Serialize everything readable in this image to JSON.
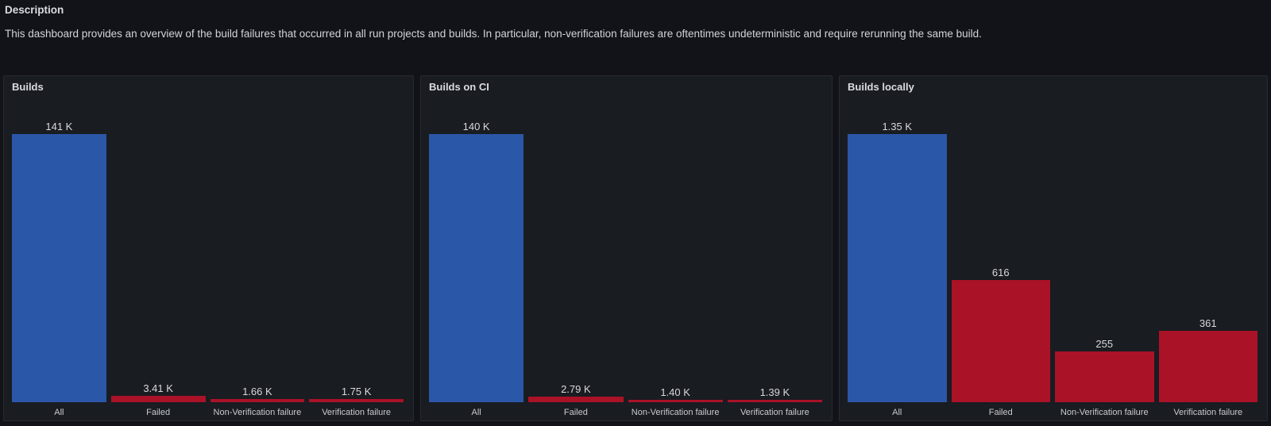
{
  "description_panel": {
    "title": "Description",
    "body": "This dashboard provides an overview of the build failures that occurred in all run projects and builds. In particular, non-verification failures are oftentimes undeterministic and require rerunning the same build."
  },
  "colors": {
    "page_background": "#111318",
    "panel_background": "#191C21",
    "panel_border": "#272A30",
    "all_bar_blue": "#2B57A8",
    "failure_bar_red": "#AA1228",
    "title_text": "#DBDCE0",
    "value_label_text": "#D8D9DD",
    "axis_label_text": "#C8CAD0"
  },
  "chart_data": [
    {
      "type": "bar",
      "title": "Builds",
      "categories": [
        "All",
        "Failed",
        "Non-Verification failure",
        "Verification failure"
      ],
      "values": [
        141000,
        3410,
        1660,
        1750
      ],
      "value_labels": [
        "141 K",
        "3.41 K",
        "1.66 K",
        "1.75 K"
      ],
      "bar_colors": [
        "#2B57A8",
        "#AA1228",
        "#AA1228",
        "#AA1228"
      ],
      "xlabel": "",
      "ylabel": "",
      "ylim": [
        0,
        141000
      ],
      "grid": false,
      "legend": "none",
      "value_labels_position": "above-bar"
    },
    {
      "type": "bar",
      "title": "Builds on CI",
      "categories": [
        "All",
        "Failed",
        "Non-Verification failure",
        "Verification failure"
      ],
      "values": [
        140000,
        2790,
        1400,
        1390
      ],
      "value_labels": [
        "140 K",
        "2.79 K",
        "1.40 K",
        "1.39 K"
      ],
      "bar_colors": [
        "#2B57A8",
        "#AA1228",
        "#AA1228",
        "#AA1228"
      ],
      "xlabel": "",
      "ylabel": "",
      "ylim": [
        0,
        140000
      ],
      "grid": false,
      "legend": "none",
      "value_labels_position": "above-bar"
    },
    {
      "type": "bar",
      "title": "Builds locally",
      "categories": [
        "All",
        "Failed",
        "Non-Verification failure",
        "Verification failure"
      ],
      "values": [
        1350,
        616,
        255,
        361
      ],
      "value_labels": [
        "1.35 K",
        "616",
        "255",
        "361"
      ],
      "bar_colors": [
        "#2B57A8",
        "#AA1228",
        "#AA1228",
        "#AA1228"
      ],
      "xlabel": "",
      "ylabel": "",
      "ylim": [
        0,
        1350
      ],
      "grid": false,
      "legend": "none",
      "value_labels_position": "above-bar"
    }
  ]
}
